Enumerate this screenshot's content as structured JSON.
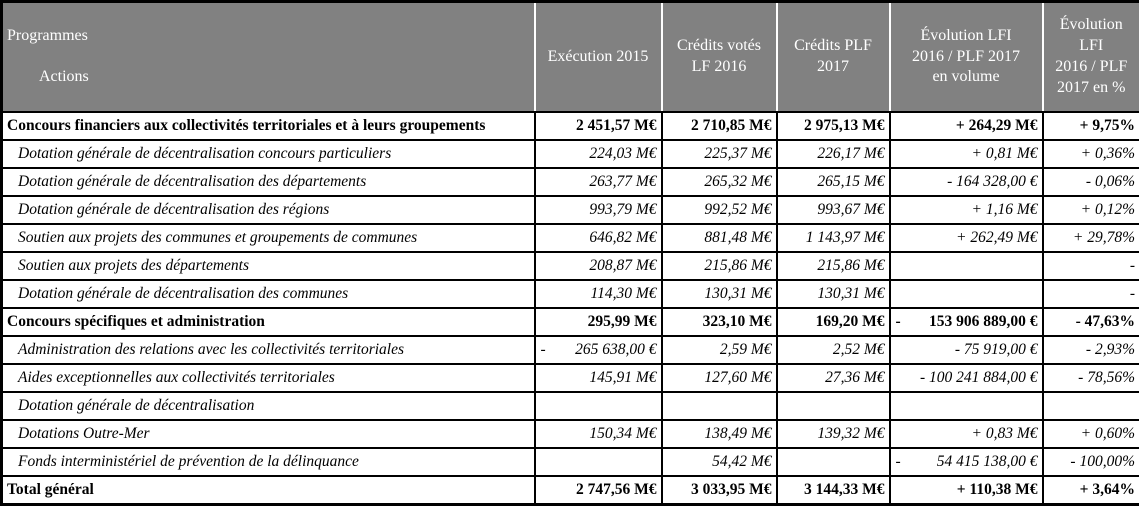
{
  "table": {
    "header": {
      "programmes": "Programmes",
      "actions": "Actions",
      "columns": [
        "Exécution 2015",
        "Crédits votés\nLF 2016",
        "Crédits PLF\n2017",
        "Évolution LFI\n2016 / PLF 2017\nen volume",
        "Évolution\nLFI\n2016 / PLF\n2017 en %"
      ]
    },
    "rows": [
      {
        "type": "section",
        "label": "Concours financiers aux collectivités territoriales et à leurs groupements",
        "exec": "2 451,57 M€",
        "lf2016": "2 710,85 M€",
        "plf2017": "2 975,13 M€",
        "vol": "+ 264,29 M€",
        "pct": "+ 9,75%"
      },
      {
        "type": "action",
        "label": "Dotation générale de décentralisation concours particuliers",
        "exec": "224,03 M€",
        "lf2016": "225,37 M€",
        "plf2017": "226,17 M€",
        "vol": "+ 0,81 M€",
        "pct": "+ 0,36%"
      },
      {
        "type": "action",
        "label": "Dotation générale de décentralisation des départements",
        "exec": "263,77 M€",
        "lf2016": "265,32 M€",
        "plf2017": "265,15 M€",
        "vol": "- 164 328,00 €",
        "pct": "- 0,06%"
      },
      {
        "type": "action",
        "label": "Dotation générale de décentralisation des régions",
        "exec": "993,79 M€",
        "lf2016": "992,52 M€",
        "plf2017": "993,67 M€",
        "vol": "+ 1,16 M€",
        "pct": "+ 0,12%"
      },
      {
        "type": "action",
        "label": "Soutien aux projets des communes et groupements de communes",
        "exec": "646,82 M€",
        "lf2016": "881,48 M€",
        "plf2017": "1 143,97 M€",
        "vol": "+ 262,49 M€",
        "pct": "+ 29,78%"
      },
      {
        "type": "action",
        "label": "Soutien aux projets des départements",
        "exec": "208,87 M€",
        "lf2016": "215,86 M€",
        "plf2017": "215,86 M€",
        "vol": "",
        "pct": "-"
      },
      {
        "type": "action",
        "label": "Dotation générale de décentralisation des communes",
        "exec": "114,30 M€",
        "lf2016": "130,31 M€",
        "plf2017": "130,31 M€",
        "vol": "",
        "pct": "-"
      },
      {
        "type": "section",
        "label": "Concours spécifiques et administration",
        "exec": "295,99 M€",
        "lf2016": "323,10 M€",
        "plf2017": "169,20 M€",
        "vol": {
          "sign": "-",
          "text": "153 906 889,00 €"
        },
        "pct": "- 47,63%"
      },
      {
        "type": "action",
        "label": "Administration des relations avec les collectivités territoriales",
        "exec": {
          "sign": "-",
          "text": "265 638,00 €"
        },
        "lf2016": "2,59 M€",
        "plf2017": "2,52 M€",
        "vol": "- 75 919,00 €",
        "pct": "- 2,93%"
      },
      {
        "type": "action",
        "label": "Aides exceptionnelles aux collectivités territoriales",
        "exec": "145,91 M€",
        "lf2016": "127,60 M€",
        "plf2017": "27,36 M€",
        "vol": "- 100 241 884,00 €",
        "pct": "- 78,56%"
      },
      {
        "type": "action",
        "label": "Dotation générale de décentralisation",
        "exec": "",
        "lf2016": "",
        "plf2017": "",
        "vol": "",
        "pct": ""
      },
      {
        "type": "action",
        "label": "Dotations Outre-Mer",
        "exec": "150,34 M€",
        "lf2016": "138,49 M€",
        "plf2017": "139,32 M€",
        "vol": "+ 0,83 M€",
        "pct": "+ 0,60%"
      },
      {
        "type": "action",
        "label": "Fonds interministériel de prévention de la délinquance",
        "exec": "",
        "lf2016": "54,42 M€",
        "plf2017": "",
        "vol": {
          "sign": "-",
          "text": "54 415 138,00 €"
        },
        "pct": "- 100,00%"
      },
      {
        "type": "total",
        "label": "Total général",
        "exec": "2 747,56 M€",
        "lf2016": "3 033,95 M€",
        "plf2017": "3 144,33 M€",
        "vol": "+ 110,38 M€",
        "pct": "+ 3,64%"
      }
    ]
  }
}
